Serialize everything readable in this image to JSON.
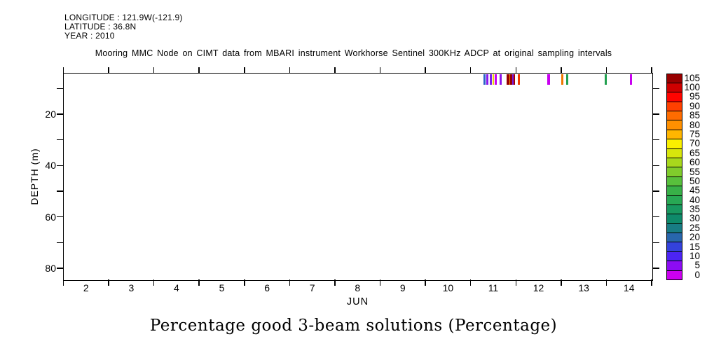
{
  "header": {
    "longitude": "LONGITUDE : 121.9W(-121.9)",
    "latitude": "LATITUDE : 36.8N",
    "year": "YEAR : 2010",
    "title": "Mooring MMC Node on CIMT data from MBARI instrument Workhorse Sentinel 300KHz ADCP at original sampling intervals"
  },
  "caption": "Percentage good 3-beam solutions (Percentage)",
  "chart_data": {
    "type": "heatmap",
    "title": "Mooring MMC Node on CIMT data from MBARI instrument Workhorse Sentinel 300KHz ADCP at original sampling intervals",
    "xlabel": "JUN",
    "ylabel": "DEPTH (m)",
    "x_range_days": [
      1.5,
      14.5
    ],
    "x_tick_labels": [
      2,
      3,
      4,
      5,
      6,
      7,
      8,
      9,
      10,
      11,
      12,
      13,
      14
    ],
    "x_boundary_ticks": [
      1.5,
      2.5,
      3.5,
      4.5,
      5.5,
      6.5,
      7.5,
      8.5,
      9.5,
      10.5,
      11.5,
      12.5,
      13.5,
      14.5
    ],
    "y_range_m": [
      4,
      84.4
    ],
    "y_major_ticks": [
      20,
      40,
      60,
      80
    ],
    "y_minor_ticks": [
      10,
      30,
      50,
      70
    ],
    "grid": false,
    "legend_position": "colorbar-right",
    "colorbar": {
      "unit": "Percentage",
      "value_min": 0,
      "value_max": 105,
      "label_step": 5,
      "cells_top_to_bottom": [
        {
          "label": "105",
          "color": "#980000"
        },
        {
          "label": "100",
          "color": "#CE0000"
        },
        {
          "label": "95",
          "color": "#FF0400"
        },
        {
          "label": "90",
          "color": "#FF4000"
        },
        {
          "label": "85",
          "color": "#FF6C00"
        },
        {
          "label": "80",
          "color": "#FF9000"
        },
        {
          "label": "75",
          "color": "#FFB600"
        },
        {
          "label": "70",
          "color": "#FAF000"
        },
        {
          "label": "65",
          "color": "#D8E60C"
        },
        {
          "label": "60",
          "color": "#A8D81C"
        },
        {
          "label": "55",
          "color": "#80CC2C"
        },
        {
          "label": "50",
          "color": "#58C03C"
        },
        {
          "label": "45",
          "color": "#38B048"
        },
        {
          "label": "40",
          "color": "#28A854"
        },
        {
          "label": "35",
          "color": "#189860"
        },
        {
          "label": "30",
          "color": "#0E8A6A"
        },
        {
          "label": "25",
          "color": "#187C84"
        },
        {
          "label": "20",
          "color": "#2866AC"
        },
        {
          "label": "15",
          "color": "#3442DC"
        },
        {
          "label": "10",
          "color": "#4C24F4"
        },
        {
          "label": "5",
          "color": "#8C0CF4"
        },
        {
          "label": "0",
          "color": "#CC00F0"
        }
      ]
    },
    "event_depth_bin_m": [
      4.4,
      8.6
    ],
    "events": [
      {
        "day": 10.81,
        "value": 20,
        "color": "#2E62C8",
        "w": 3
      },
      {
        "day": 10.87,
        "value": 5,
        "color": "#8818EC",
        "w": 3
      },
      {
        "day": 10.94,
        "value": 8,
        "color": "#7A20F0",
        "w": 3
      },
      {
        "day": 11.0,
        "value": 70,
        "color": "#E8D400",
        "w": 1.5
      },
      {
        "day": 11.05,
        "value": 2,
        "color": "#C800F0",
        "w": 3
      },
      {
        "day": 11.17,
        "value": 6,
        "color": "#8C14E8",
        "w": 3
      },
      {
        "day": 11.33,
        "value": 104,
        "color": "#980000",
        "w": 4
      },
      {
        "day": 11.37,
        "value": 78,
        "color": "#F09000",
        "w": 1.5
      },
      {
        "day": 11.4,
        "value": 103,
        "color": "#980000",
        "w": 3
      },
      {
        "day": 11.44,
        "value": 7,
        "color": "#7A1EE8",
        "w": 2
      },
      {
        "day": 11.47,
        "value": 102,
        "color": "#A40000",
        "w": 2
      },
      {
        "day": 11.56,
        "value": 89,
        "color": "#F23A00",
        "w": 3
      },
      {
        "day": 12.23,
        "value": 2,
        "color": "#C800F0",
        "w": 4
      },
      {
        "day": 12.53,
        "value": 80,
        "color": "#F07800",
        "w": 3
      },
      {
        "day": 12.64,
        "value": 38,
        "color": "#22A050",
        "w": 3
      },
      {
        "day": 13.48,
        "value": 38,
        "color": "#22A050",
        "w": 3
      },
      {
        "day": 14.04,
        "value": 2,
        "color": "#C800F0",
        "w": 3
      }
    ]
  }
}
